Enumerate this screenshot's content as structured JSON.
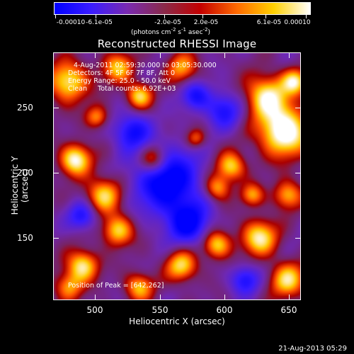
{
  "colorbar": {
    "tick_labels": [
      "-0.00010",
      "-6.1e-05",
      "-2.0e-05",
      "2.0e-05",
      "6.1e-05",
      "0.00010"
    ],
    "units": {
      "pre": "(photons cm",
      "sup1": "-2",
      "mid": " s",
      "sup2": "-1",
      "mid2": " asec",
      "sup3": "-2",
      "post": ")"
    },
    "gradient": [
      "#0000ff",
      "#3a1cff",
      "#7a2ab0",
      "#8a2a4a",
      "#c40000",
      "#ff6a00",
      "#ffd000",
      "#ffffff"
    ]
  },
  "title": "Reconstructed RHESSI Image",
  "info": {
    "line1": "4-Aug-2011 02:59:30.000 to 03:05:30.000",
    "line2": "Detectors: 4F 5F 6F 7F 8F, Att 0",
    "line3": "Energy Range: 25.0 - 50.0 keV",
    "line4": "Clean     Total counts: 6.92E+03",
    "peak": "Position of Peak = [642,262]"
  },
  "axes": {
    "xlabel": "Heliocentric X (arcsec)",
    "ylabel": "Heliocentric Y (arcsec)",
    "x_ticks": [
      "500",
      "550",
      "600",
      "650"
    ],
    "y_ticks": [
      "250",
      "200",
      "150"
    ],
    "xlim": [
      465,
      660
    ],
    "ylim": [
      100,
      295
    ]
  },
  "timestamp": "21-Aug-2013 05:29"
}
